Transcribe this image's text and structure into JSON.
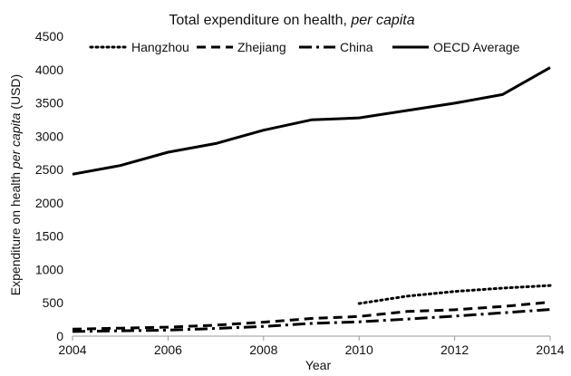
{
  "chart_data": {
    "type": "line",
    "title": "Total expenditure on health, ",
    "title_italic": "per capita",
    "xlabel": "Year",
    "ylabel": "Expenditure on health ",
    "ylabel_italic": "per capita",
    "ylabel_suffix": " (USD)",
    "xlim": [
      2004,
      2014
    ],
    "ylim": [
      0,
      4500
    ],
    "x_ticks": [
      2004,
      2006,
      2008,
      2010,
      2012,
      2014
    ],
    "y_ticks": [
      0,
      500,
      1000,
      1500,
      2000,
      2500,
      3000,
      3500,
      4000,
      4500
    ],
    "legend": "top",
    "grid": false,
    "series": [
      {
        "name": "Hangzhou",
        "style": "dotted",
        "color": "#000000",
        "x": [
          2010,
          2011,
          2012,
          2013,
          2014
        ],
        "values": [
          490,
          600,
          670,
          720,
          760
        ]
      },
      {
        "name": "Zhejiang",
        "style": "dashed",
        "color": "#000000",
        "x": [
          2004,
          2005,
          2006,
          2007,
          2008,
          2009,
          2010,
          2011,
          2012,
          2013,
          2014
        ],
        "values": [
          105,
          120,
          135,
          165,
          210,
          265,
          295,
          370,
          395,
          445,
          510
        ]
      },
      {
        "name": "China",
        "style": "dashdot",
        "color": "#000000",
        "x": [
          2004,
          2005,
          2006,
          2007,
          2008,
          2009,
          2010,
          2011,
          2012,
          2013,
          2014
        ],
        "values": [
          70,
          80,
          90,
          115,
          145,
          190,
          215,
          255,
          300,
          350,
          400
        ]
      },
      {
        "name": "OECD Average",
        "style": "solid",
        "color": "#000000",
        "x": [
          2004,
          2005,
          2006,
          2007,
          2008,
          2009,
          2010,
          2011,
          2012,
          2013,
          2014
        ],
        "values": [
          2430,
          2560,
          2760,
          2890,
          3090,
          3245,
          3275,
          3385,
          3495,
          3625,
          4030
        ]
      }
    ]
  }
}
